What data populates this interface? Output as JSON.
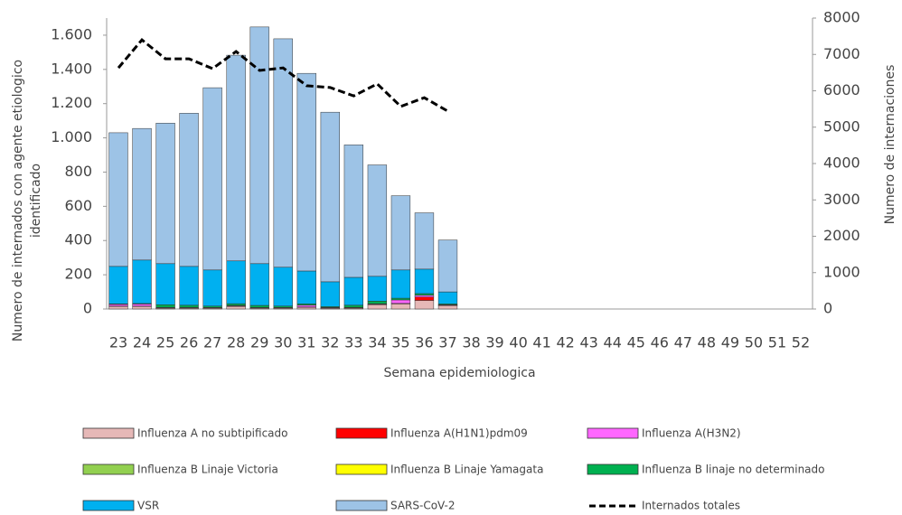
{
  "chart_data": {
    "type": "bar",
    "stacked": true,
    "x_label": "Semana epidemiologica",
    "y_label": [
      "Numero de internados con agente etiologico",
      "identificado"
    ],
    "y2_label": "Numero de internaciones",
    "categories": [
      "23",
      "24",
      "25",
      "26",
      "27",
      "28",
      "29",
      "30",
      "31",
      "32",
      "33",
      "34",
      "35",
      "36",
      "37",
      "38",
      "39",
      "40",
      "41",
      "42",
      "43",
      "44",
      "45",
      "46",
      "47",
      "48",
      "49",
      "50",
      "51",
      "52"
    ],
    "ylim": [
      0,
      1700
    ],
    "yticks": [
      0,
      200,
      400,
      600,
      800,
      {
        "value": 1000,
        "label": "1.000"
      },
      {
        "value": 1200,
        "label": "1.200"
      },
      {
        "value": 1400,
        "label": "1.400"
      },
      {
        "value": 1600,
        "label": "1.600"
      }
    ],
    "y2lim": [
      0,
      8000
    ],
    "y2ticks": [
      0,
      1000,
      2000,
      3000,
      4000,
      5000,
      6000,
      7000,
      8000
    ],
    "grid": false,
    "series": [
      {
        "name": "Influenza A no subtipificado",
        "color": "#e6b8b7",
        "values": [
          15,
          15,
          5,
          5,
          5,
          15,
          5,
          5,
          10,
          5,
          5,
          25,
          30,
          50,
          20,
          null,
          null,
          null,
          null,
          null,
          null,
          null,
          null,
          null,
          null,
          null,
          null,
          null,
          null,
          null
        ]
      },
      {
        "name": "Influenza A(H1N1)pdm09",
        "color": "#ff0000",
        "values": [
          2,
          2,
          2,
          2,
          2,
          3,
          2,
          2,
          2,
          2,
          3,
          3,
          3,
          20,
          2,
          null,
          null,
          null,
          null,
          null,
          null,
          null,
          null,
          null,
          null,
          null,
          null,
          null,
          null,
          null
        ]
      },
      {
        "name": "Influenza A(H3N2)",
        "color": "#ff66ff",
        "values": [
          10,
          12,
          3,
          3,
          2,
          3,
          2,
          2,
          10,
          2,
          2,
          3,
          20,
          10,
          3,
          null,
          null,
          null,
          null,
          null,
          null,
          null,
          null,
          null,
          null,
          null,
          null,
          null,
          null,
          null
        ]
      },
      {
        "name": "Influenza B Linaje Victoria",
        "color": "#92d050",
        "values": [
          0,
          0,
          0,
          0,
          0,
          0,
          0,
          0,
          0,
          0,
          0,
          0,
          0,
          0,
          0,
          null,
          null,
          null,
          null,
          null,
          null,
          null,
          null,
          null,
          null,
          null,
          null,
          null,
          null,
          null
        ]
      },
      {
        "name": "Influenza B Linaje Yamagata",
        "color": "#ffff00",
        "values": [
          0,
          0,
          0,
          0,
          0,
          0,
          0,
          0,
          0,
          0,
          0,
          0,
          0,
          0,
          0,
          null,
          null,
          null,
          null,
          null,
          null,
          null,
          null,
          null,
          null,
          null,
          null,
          null,
          null,
          null
        ]
      },
      {
        "name": "Influenza B linaje no determinado",
        "color": "#00b050",
        "values": [
          3,
          3,
          15,
          12,
          8,
          10,
          12,
          8,
          8,
          5,
          12,
          15,
          10,
          10,
          5,
          null,
          null,
          null,
          null,
          null,
          null,
          null,
          null,
          null,
          null,
          null,
          null,
          null,
          null,
          null
        ]
      },
      {
        "name": "VSR",
        "color": "#00b0f0",
        "values": [
          219,
          254,
          240,
          227,
          211,
          250,
          244,
          227,
          192,
          145,
          163,
          145,
          165,
          143,
          70,
          null,
          null,
          null,
          null,
          null,
          null,
          null,
          null,
          null,
          null,
          null,
          null,
          null,
          null,
          null
        ]
      },
      {
        "name": "SARS-CoV-2",
        "color": "#9dc3e6",
        "values": [
          781,
          769,
          821,
          895,
          1065,
          1202,
          1383,
          1335,
          1155,
          991,
          774,
          651,
          434,
          329,
          303,
          null,
          null,
          null,
          null,
          null,
          null,
          null,
          null,
          null,
          null,
          null,
          null,
          null,
          null,
          null
        ]
      },
      {
        "name": "Internados totales",
        "type": "line",
        "axis": "y2",
        "color": "#000000",
        "dashed": true,
        "values": [
          6630,
          7400,
          6880,
          6880,
          6610,
          7080,
          6560,
          6630,
          6140,
          6090,
          5860,
          6190,
          5570,
          5810,
          5440,
          null,
          null,
          null,
          null,
          null,
          null,
          null,
          null,
          null,
          null,
          null,
          null,
          null,
          null,
          null
        ]
      }
    ],
    "legend_position": "bottom"
  }
}
